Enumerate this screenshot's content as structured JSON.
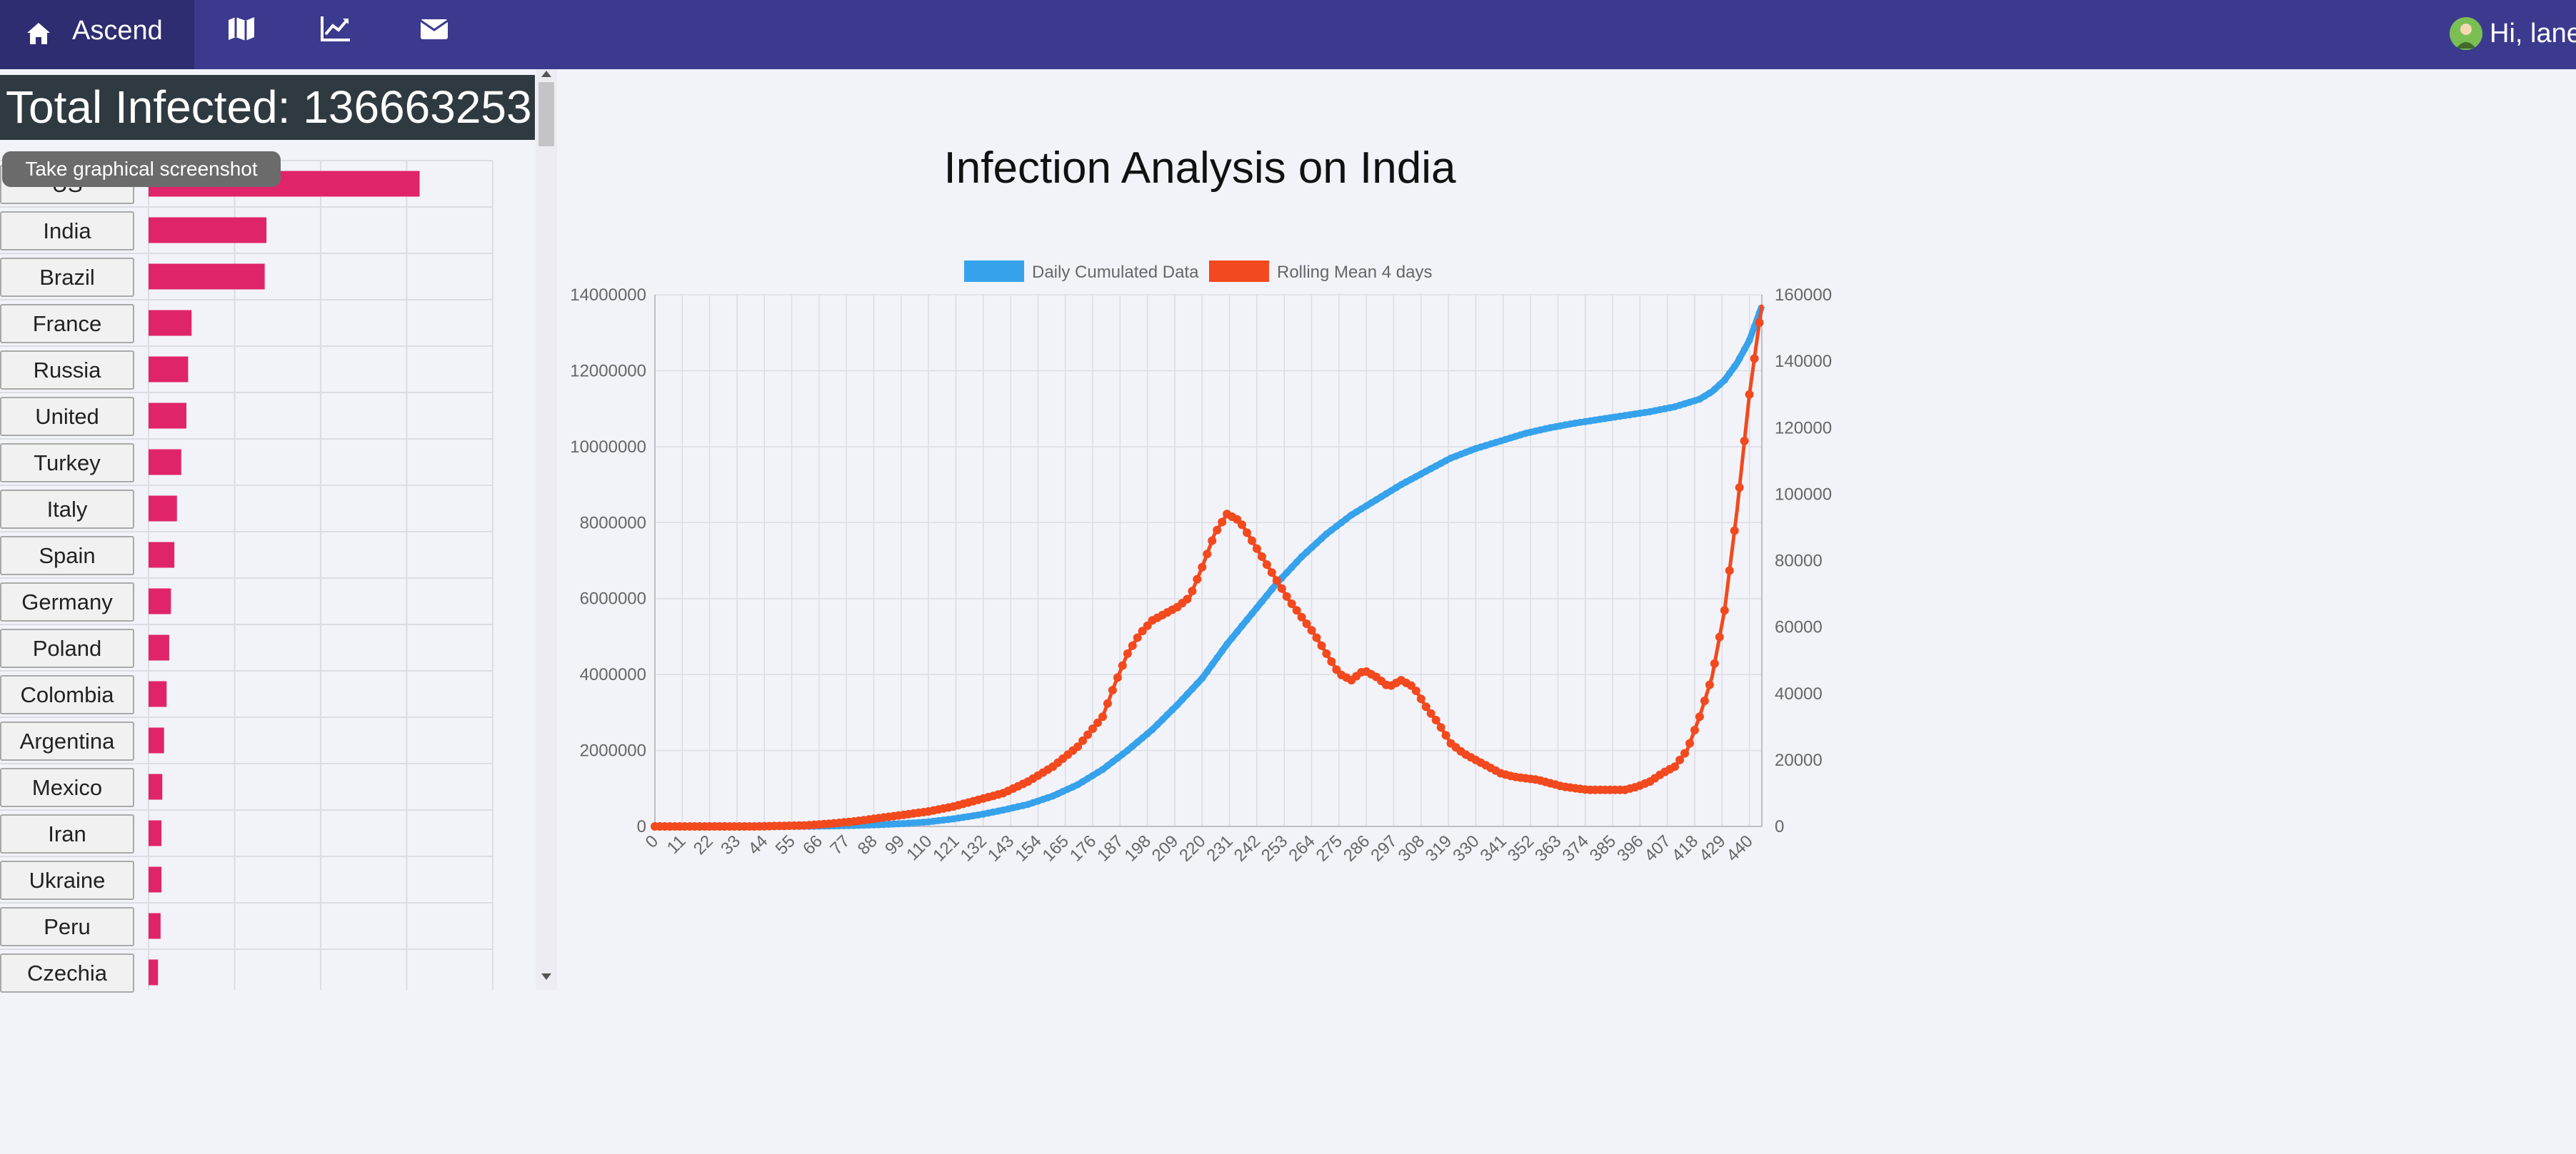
{
  "navbar": {
    "brand": "Ascend",
    "icons": [
      "home-icon",
      "map-icon",
      "chart-line-icon",
      "envelope-icon"
    ],
    "greeting": "Hi, lane",
    "color": "#3b3a8e",
    "brand_bg": "#2e2d72"
  },
  "left_panel": {
    "total_infected": "Total Infected: 136663253",
    "tooltip": "Take graphical screenshot",
    "bar_color": "#e0246a"
  },
  "main_chart": {
    "title": "Infection Analysis on India"
  },
  "chart_data": [
    {
      "type": "bar",
      "orientation": "horizontal",
      "categories": [
        "US",
        "India",
        "Brazil",
        "France",
        "Russia",
        "United",
        "Turkey",
        "Italy",
        "Spain",
        "Germany",
        "Poland",
        "Colombia",
        "Argentina",
        "Mexico",
        "Iran",
        "Ukraine",
        "Peru",
        "Czechia"
      ],
      "values": [
        31500000,
        13700000,
        13500000,
        5000000,
        4600000,
        4400000,
        3800000,
        3300000,
        3000000,
        2600000,
        2400000,
        2100000,
        1800000,
        1600000,
        1500000,
        1500000,
        1400000,
        1100000
      ],
      "xlim": [
        0,
        40000000
      ],
      "grid": true
    },
    {
      "type": "line",
      "title": "Infection Analysis on India",
      "legend_position": "top",
      "x_tick_labels": [
        "0",
        "11",
        "22",
        "33",
        "44",
        "55",
        "66",
        "77",
        "88",
        "99",
        "110",
        "121",
        "132",
        "143",
        "154",
        "165",
        "176",
        "187",
        "198",
        "209",
        "220",
        "231",
        "242",
        "253",
        "264",
        "275",
        "286",
        "297",
        "308",
        "319",
        "330",
        "341",
        "352",
        "363",
        "374",
        "385",
        "396",
        "407",
        "418",
        "429",
        "440"
      ],
      "xlim": [
        0,
        445
      ],
      "y_left": {
        "ticks": [
          "0",
          "2000000",
          "4000000",
          "6000000",
          "8000000",
          "10000000",
          "12000000",
          "14000000"
        ],
        "lim": [
          0,
          14000000
        ]
      },
      "y_right": {
        "ticks": [
          "0",
          "20000",
          "40000",
          "60000",
          "80000",
          "100000",
          "120000",
          "140000",
          "160000"
        ],
        "lim": [
          0,
          160000
        ]
      },
      "grid": true,
      "series": [
        {
          "name": "Daily Cumulated Data",
          "axis": "left",
          "color": "#36a2eb",
          "x": [
            0,
            20,
            40,
            60,
            70,
            80,
            90,
            100,
            110,
            120,
            130,
            140,
            150,
            160,
            170,
            180,
            190,
            200,
            210,
            220,
            230,
            240,
            250,
            260,
            270,
            280,
            290,
            300,
            310,
            320,
            330,
            340,
            350,
            360,
            370,
            380,
            390,
            400,
            410,
            420,
            425,
            430,
            435,
            440,
            445
          ],
          "y": [
            0,
            0,
            0,
            3000,
            10000,
            25000,
            45000,
            75000,
            120000,
            200000,
            300000,
            430000,
            580000,
            800000,
            1100000,
            1500000,
            2000000,
            2550000,
            3200000,
            3900000,
            4800000,
            5600000,
            6400000,
            7100000,
            7700000,
            8200000,
            8600000,
            9000000,
            9350000,
            9700000,
            9950000,
            10150000,
            10350000,
            10500000,
            10620000,
            10720000,
            10820000,
            10920000,
            11050000,
            11250000,
            11450000,
            11750000,
            12200000,
            12800000,
            13700000
          ]
        },
        {
          "name": "Rolling Mean 4 days",
          "axis": "right",
          "color": "#f2491e",
          "x": [
            0,
            20,
            40,
            60,
            70,
            80,
            90,
            100,
            110,
            120,
            130,
            140,
            150,
            160,
            170,
            180,
            185,
            190,
            195,
            200,
            205,
            210,
            215,
            220,
            225,
            230,
            235,
            240,
            245,
            250,
            255,
            260,
            265,
            270,
            275,
            280,
            285,
            290,
            295,
            300,
            305,
            310,
            315,
            320,
            325,
            330,
            335,
            340,
            345,
            350,
            355,
            360,
            365,
            370,
            375,
            380,
            385,
            390,
            395,
            400,
            405,
            410,
            415,
            420,
            425,
            430,
            435,
            440,
            445
          ],
          "y": [
            0,
            0,
            0,
            300,
            800,
            1500,
            2500,
            3500,
            4500,
            6000,
            8000,
            10000,
            13500,
            18000,
            24000,
            33000,
            43000,
            52000,
            58000,
            62000,
            64000,
            66000,
            69000,
            78000,
            88000,
            94000,
            92000,
            86000,
            80000,
            74000,
            68000,
            63000,
            58000,
            52000,
            46000,
            44000,
            47000,
            45000,
            42000,
            44000,
            42000,
            36000,
            31000,
            25000,
            22000,
            20000,
            18000,
            16000,
            15000,
            14500,
            14000,
            13000,
            12000,
            11500,
            11000,
            11000,
            11000,
            11000,
            12000,
            13500,
            16000,
            18000,
            23000,
            33000,
            45000,
            65000,
            95000,
            130000,
            157000
          ]
        }
      ]
    }
  ]
}
